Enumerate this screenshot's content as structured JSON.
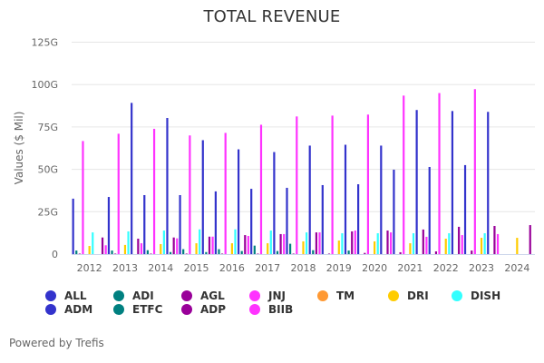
{
  "chart_data": {
    "type": "bar",
    "title": "TOTAL REVENUE",
    "xlabel": "",
    "ylabel": "Values ($ Mil)",
    "ylim": [
      0,
      125
    ],
    "yticks": [
      0,
      25,
      50,
      75,
      100,
      125
    ],
    "ytick_labels": [
      "0",
      "25G",
      "50G",
      "75G",
      "100G",
      "125G"
    ],
    "grid": true,
    "legend_position": "bottom",
    "categories": [
      "2012",
      "2013",
      "2014",
      "2015",
      "2016",
      "2017",
      "2018",
      "2019",
      "2020",
      "2021",
      "2022",
      "2023",
      "2024"
    ],
    "series": [
      {
        "name": "ALL",
        "color": "#3333cc",
        "values": [
          32.7,
          33.7,
          34.8,
          34.8,
          37.0,
          38.5,
          39.1,
          40.7,
          41.2,
          49.8,
          51.4,
          52.5,
          null
        ]
      },
      {
        "name": "ADI",
        "color": "#008080",
        "values": [
          2.1,
          2.1,
          2.3,
          2.9,
          2.9,
          5.0,
          6.1,
          null,
          null,
          null,
          null,
          null,
          null
        ]
      },
      {
        "name": "AGL",
        "color": "#990099",
        "values": [
          0.3,
          0.3,
          0.3,
          0.3,
          0.3,
          0.3,
          0.3,
          0.3,
          0.7,
          1.1,
          1.6,
          2.1,
          null
        ]
      },
      {
        "name": "JNJ",
        "color": "#ff33ff",
        "values": [
          66.7,
          71.0,
          73.9,
          70.0,
          71.5,
          76.3,
          81.2,
          81.7,
          82.3,
          93.5,
          95.0,
          97.3,
          null
        ]
      },
      {
        "name": "TM",
        "color": "#ff9933",
        "values": [
          null,
          null,
          null,
          null,
          null,
          null,
          null,
          null,
          null,
          null,
          null,
          null,
          null
        ]
      },
      {
        "name": "DRI",
        "color": "#ffcc00",
        "values": [
          4.8,
          5.4,
          5.9,
          6.4,
          6.4,
          6.4,
          7.5,
          8.0,
          7.5,
          6.4,
          9.1,
          9.6,
          9.6
        ]
      },
      {
        "name": "DISH",
        "color": "#33ffff",
        "values": [
          12.8,
          13.4,
          13.9,
          14.6,
          14.6,
          13.9,
          12.8,
          12.3,
          12.3,
          12.3,
          12.3,
          12.3,
          null
        ]
      },
      {
        "name": "ADM",
        "color": "#3333cc",
        "values": [
          null,
          89.2,
          80.3,
          67.2,
          61.8,
          60.2,
          64.0,
          64.5,
          64.0,
          85.0,
          84.4,
          83.9,
          null
        ]
      },
      {
        "name": "ETFC",
        "color": "#008080",
        "values": [
          null,
          null,
          1.2,
          1.2,
          1.8,
          1.8,
          2.3,
          2.1,
          null,
          null,
          null,
          null,
          null
        ]
      },
      {
        "name": "ADP",
        "color": "#990099",
        "values": [
          9.8,
          9.1,
          9.8,
          10.3,
          11.2,
          11.8,
          12.8,
          13.4,
          13.9,
          14.5,
          16.1,
          16.6,
          17.1
        ]
      },
      {
        "name": "BIIB",
        "color": "#ff33ff",
        "values": [
          5.2,
          6.4,
          9.3,
          10.3,
          10.7,
          11.8,
          12.8,
          13.9,
          12.8,
          10.2,
          11.2,
          11.8,
          null
        ]
      }
    ]
  },
  "legend": {
    "items": [
      {
        "label": "ALL",
        "color": "#3333cc"
      },
      {
        "label": "ADI",
        "color": "#008080"
      },
      {
        "label": "AGL",
        "color": "#990099"
      },
      {
        "label": "JNJ",
        "color": "#ff33ff"
      },
      {
        "label": "TM",
        "color": "#ff9933"
      },
      {
        "label": "DRI",
        "color": "#ffcc00"
      },
      {
        "label": "DISH",
        "color": "#33ffff"
      },
      {
        "label": "ADM",
        "color": "#3333cc"
      },
      {
        "label": "ETFC",
        "color": "#008080"
      },
      {
        "label": "ADP",
        "color": "#990099"
      },
      {
        "label": "BIIB",
        "color": "#ff33ff"
      }
    ]
  },
  "footer": {
    "text": "Powered by Trefis"
  }
}
